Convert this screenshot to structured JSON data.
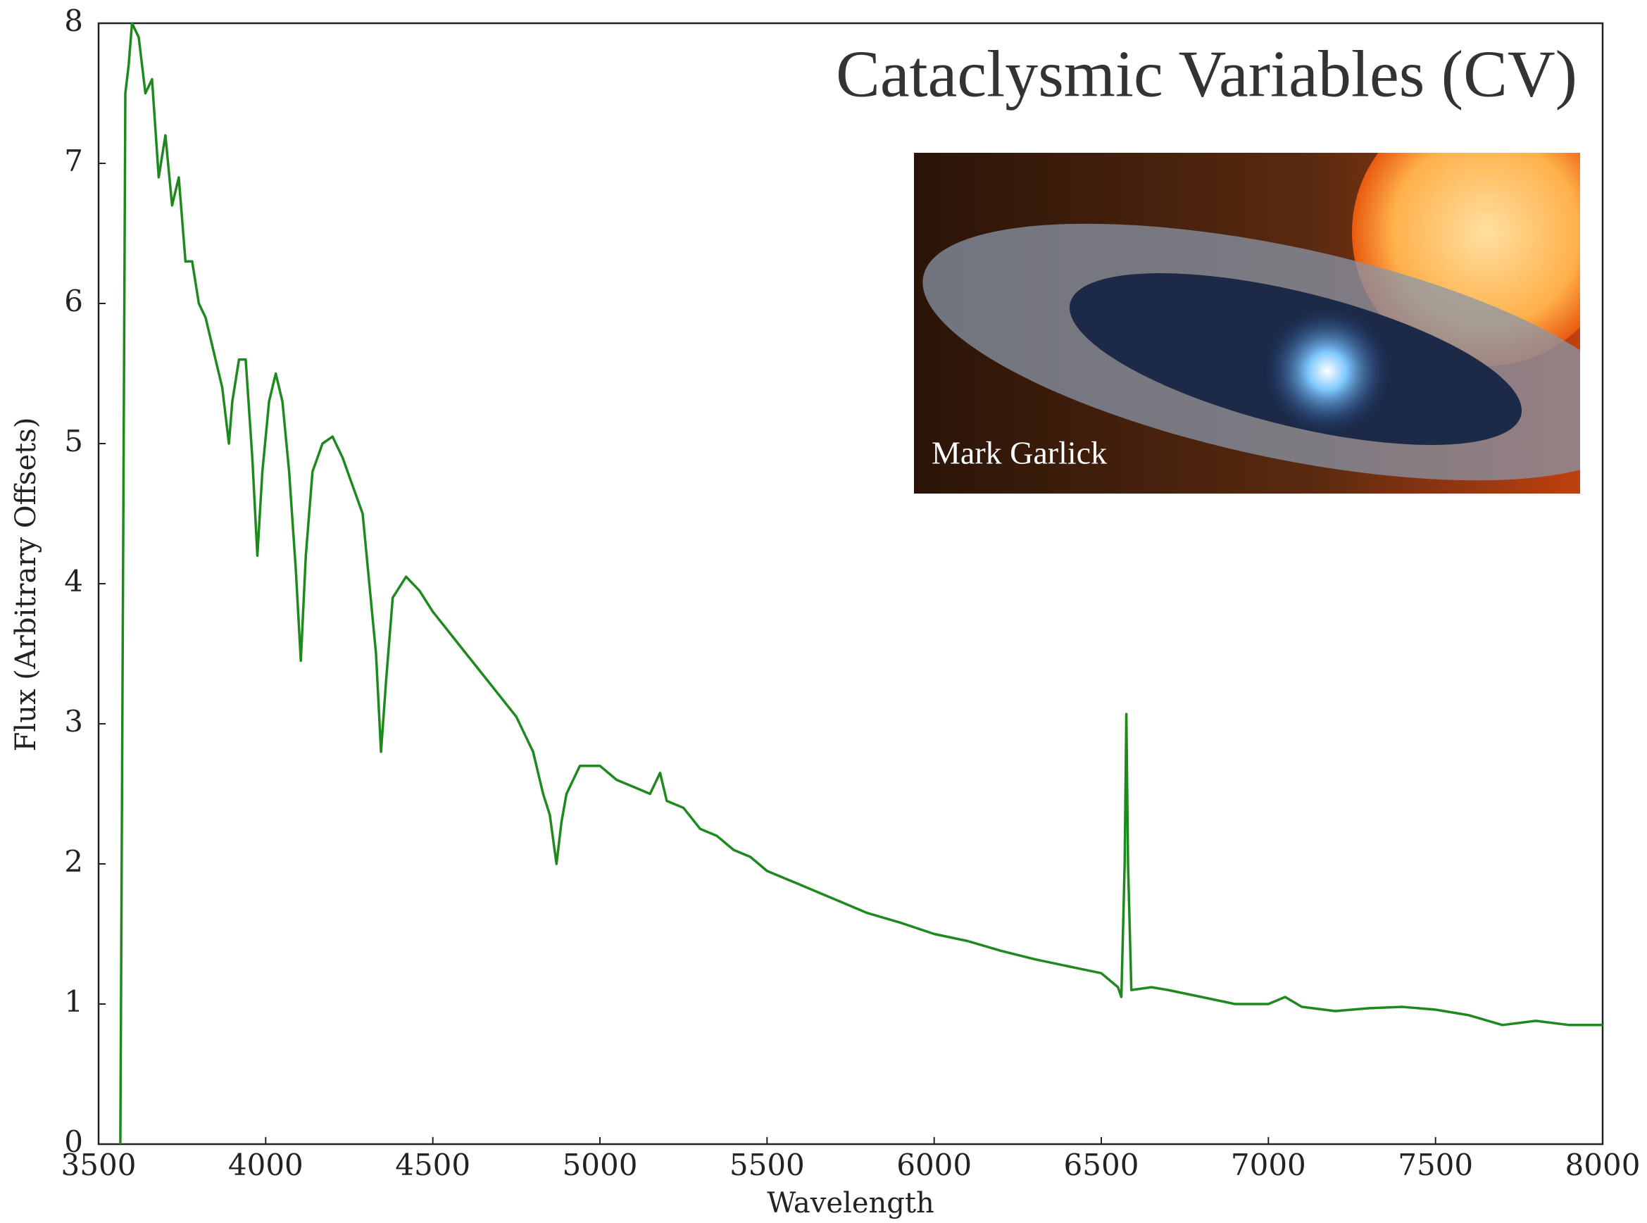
{
  "chart_data": {
    "type": "line",
    "title": "Cataclysmic Variables (CV)",
    "annotation": "Mark Garlick",
    "x_label": "Wavelength",
    "y_label": "Flux (Arbitrary Offsets)",
    "color": "#1e8a1e",
    "x": [
      3565,
      3580,
      3590,
      3600,
      3620,
      3640,
      3660,
      3680,
      3700,
      3720,
      3740,
      3760,
      3780,
      3800,
      3820,
      3850,
      3870,
      3890,
      3900,
      3920,
      3940,
      3960,
      3975,
      3990,
      4010,
      4030,
      4050,
      4070,
      4090,
      4105,
      4120,
      4140,
      4170,
      4200,
      4230,
      4260,
      4290,
      4310,
      4330,
      4345,
      4360,
      4380,
      4420,
      4460,
      4500,
      4550,
      4600,
      4650,
      4700,
      4750,
      4800,
      4830,
      4850,
      4870,
      4885,
      4900,
      4940,
      5000,
      5050,
      5100,
      5150,
      5180,
      5200,
      5250,
      5300,
      5350,
      5400,
      5450,
      5500,
      5600,
      5700,
      5800,
      5900,
      6000,
      6100,
      6200,
      6300,
      6400,
      6500,
      6550,
      6560,
      6570,
      6575,
      6580,
      6590,
      6650,
      6700,
      6800,
      6900,
      7000,
      7050,
      7100,
      7200,
      7300,
      7400,
      7500,
      7600,
      7700,
      7800,
      7900,
      8000
    ],
    "values": [
      0,
      7.5,
      7.7,
      8.0,
      7.9,
      7.5,
      7.6,
      6.9,
      7.2,
      6.7,
      6.9,
      6.3,
      6.3,
      6.0,
      5.9,
      5.6,
      5.4,
      5.0,
      5.3,
      5.6,
      5.6,
      4.9,
      4.2,
      4.8,
      5.3,
      5.5,
      5.3,
      4.8,
      4.1,
      3.45,
      4.2,
      4.8,
      5.0,
      5.05,
      4.9,
      4.7,
      4.5,
      4.0,
      3.5,
      2.8,
      3.3,
      3.9,
      4.05,
      3.95,
      3.8,
      3.65,
      3.5,
      3.35,
      3.2,
      3.05,
      2.8,
      2.5,
      2.35,
      2.0,
      2.3,
      2.5,
      2.7,
      2.7,
      2.6,
      2.55,
      2.5,
      2.65,
      2.45,
      2.4,
      2.25,
      2.2,
      2.1,
      2.05,
      1.95,
      1.85,
      1.75,
      1.65,
      1.58,
      1.5,
      1.45,
      1.38,
      1.32,
      1.27,
      1.22,
      1.12,
      1.05,
      2.0,
      3.07,
      2.0,
      1.1,
      1.12,
      1.1,
      1.05,
      1.0,
      1.0,
      1.05,
      0.98,
      0.95,
      0.97,
      0.98,
      0.96,
      0.92,
      0.85,
      0.88,
      0.85,
      0.85
    ],
    "xlim": [
      3500,
      8000
    ],
    "xticks": [
      3500,
      4000,
      4500,
      5000,
      5500,
      6000,
      6500,
      7000,
      7500,
      8000
    ],
    "ylim": [
      0,
      8
    ],
    "yticks": [
      0,
      1,
      2,
      3,
      4,
      5,
      6,
      7,
      8
    ]
  }
}
